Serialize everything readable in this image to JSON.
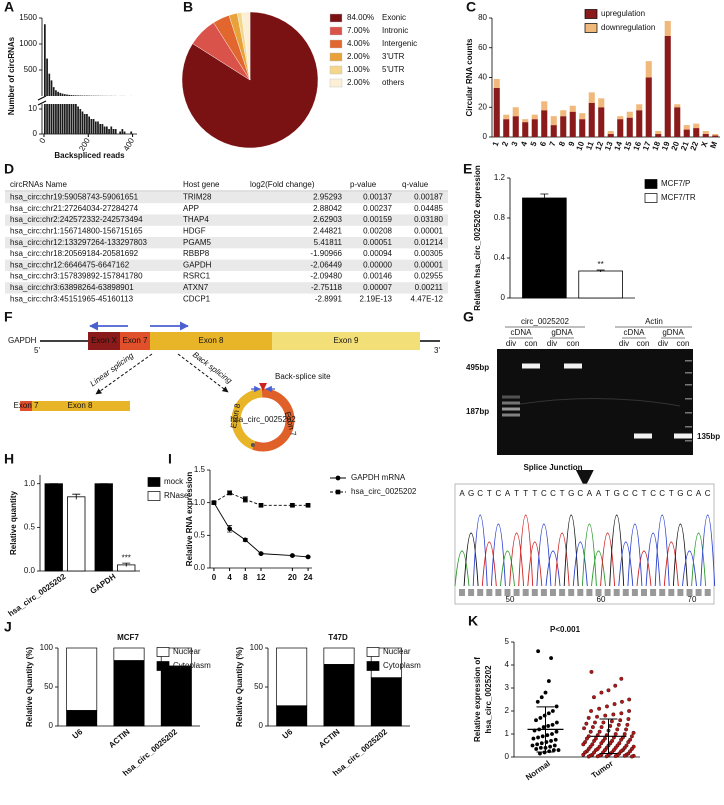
{
  "panels": [
    "A",
    "B",
    "C",
    "D",
    "E",
    "F",
    "G",
    "H",
    "I",
    "J",
    "K"
  ],
  "chart_data": [
    {
      "type": "histogram_broken",
      "y_label": "Number of circRNAs",
      "x_label": "Backspliced reads",
      "bins": [
        0,
        10,
        20,
        30,
        40,
        50,
        60,
        70,
        80,
        90,
        100,
        110,
        120,
        130,
        140,
        150,
        160,
        170,
        180,
        190,
        200,
        210,
        220,
        230,
        240,
        250,
        260,
        270,
        280,
        290,
        300,
        310,
        320,
        330,
        340,
        350,
        360,
        370,
        380,
        390,
        400
      ],
      "values": [
        1380,
        720,
        430,
        300,
        170,
        110,
        80,
        60,
        45,
        35,
        28,
        22,
        18,
        15,
        12,
        11,
        10,
        9,
        8,
        8,
        7,
        6,
        6,
        5,
        5,
        4,
        4,
        3,
        3,
        2,
        3,
        2,
        2,
        0,
        1,
        2,
        1,
        0,
        0,
        1
      ],
      "color": "#1a1a1a",
      "xlim": [
        0,
        420
      ],
      "xticks": [
        0,
        200,
        400
      ],
      "ylim": [
        0,
        1500
      ],
      "yticks": [
        500,
        1000,
        1500
      ],
      "ylim_lower": [
        0,
        12
      ],
      "yticks_lower": [
        0,
        10
      ]
    },
    {
      "type": "pie",
      "labels": [
        "Exonic",
        "Intronic",
        "Intergenic",
        "3'UTR",
        "5'UTR",
        "others"
      ],
      "values": [
        84,
        7,
        4,
        2,
        1,
        2
      ],
      "value_labels": [
        "84.00%",
        "7.00%",
        "4.00%",
        "2.00%",
        "1.00%",
        "2.00%"
      ],
      "colors": [
        "#7a1214",
        "#d9534a",
        "#e2672e",
        "#e8a23a",
        "#f3d58c",
        "#fbf0d6"
      ]
    },
    {
      "type": "stacked_bar",
      "y_label": "Circular RNA counts",
      "categories": [
        "1",
        "2",
        "3",
        "4",
        "5",
        "6",
        "7",
        "8",
        "9",
        "10",
        "11",
        "12",
        "13",
        "14",
        "15",
        "16",
        "17",
        "18",
        "19",
        "20",
        "21",
        "22",
        "X",
        "M"
      ],
      "series": [
        {
          "name": "upregulation",
          "color": "#8b1a1a",
          "values": [
            33,
            12,
            14,
            10,
            12,
            18,
            8,
            14,
            17,
            12,
            23,
            20,
            2,
            12,
            13,
            18,
            40,
            2,
            68,
            20,
            5,
            6,
            2,
            1
          ]
        },
        {
          "name": "downregulation",
          "color": "#f0b87a",
          "values": [
            6,
            3,
            6,
            2,
            3,
            6,
            6,
            4,
            4,
            4,
            7,
            6,
            2,
            2,
            4,
            4,
            11,
            2,
            10,
            2,
            3,
            3,
            2,
            1
          ]
        }
      ],
      "ylim": [
        0,
        80
      ],
      "yticks": [
        0,
        20,
        40,
        60,
        80
      ]
    },
    {
      "type": "grouped_bar",
      "y_label": "Relative hsa_circ_0025202 expression",
      "categories": [
        null
      ],
      "series": [
        {
          "name": "MCF7/P",
          "color": "#000000",
          "values": [
            1.0
          ],
          "errors": [
            0.04
          ]
        },
        {
          "name": "MCF7/TR",
          "color": "#ffffff",
          "values": [
            0.27
          ],
          "errors": [
            0.01
          ]
        }
      ],
      "edgecolor": "#000000",
      "annotation": "**",
      "ylim": [
        0,
        1.2
      ],
      "yticks": [
        0,
        0.4,
        0.8,
        1.2
      ]
    },
    {
      "type": "grouped_bar",
      "y_label": "Relative quantity",
      "categories": [
        "hsa_circ_0025202",
        "GAPDH"
      ],
      "series": [
        {
          "name": "mock",
          "color": "#000000",
          "values": [
            1.0,
            1.0
          ],
          "errors": [
            0.0,
            0.0
          ]
        },
        {
          "name": "RNase",
          "color": "#ffffff",
          "values": [
            0.85,
            0.07
          ],
          "errors": [
            0.03,
            0.02
          ]
        }
      ],
      "edgecolor": "#000000",
      "annotation": "***",
      "ylim": [
        0,
        1.1
      ],
      "yticks": [
        {
          "value": 0,
          "label": "0.0"
        },
        0.5,
        {
          "value": 1,
          "label": "1.0"
        }
      ]
    },
    {
      "type": "line",
      "y_label": "Relative RNA expression",
      "x": [
        0,
        4,
        8,
        12,
        20,
        24
      ],
      "series": [
        {
          "name": "GAPDH mRNA",
          "color": "#000000",
          "marker": "circle",
          "dashed": false,
          "values": [
            1.0,
            0.6,
            0.43,
            0.22,
            0.19,
            0.17
          ],
          "errors": [
            0.02,
            0.05,
            0.02,
            0.01,
            0.01,
            0.01
          ]
        },
        {
          "name": "hsa_circ_0025202",
          "color": "#000000",
          "marker": "square",
          "dashed": true,
          "values": [
            1.0,
            1.15,
            1.05,
            0.96,
            0.96,
            0.96
          ],
          "errors": [
            0.02,
            0.03,
            0.04,
            0.02,
            0.02,
            0.02
          ]
        }
      ],
      "xlim": [
        -1,
        25
      ],
      "xticks": [
        0,
        4,
        8,
        12,
        20,
        24
      ],
      "ylim": [
        0,
        1.5
      ],
      "yticks": [
        {
          "value": 0,
          "label": "0.0"
        },
        0.5,
        {
          "value": 1,
          "label": "1.0"
        },
        1.5
      ]
    },
    {
      "type": "stacked_bar",
      "title": "MCF7",
      "y_label": "Relative Quantity (%)",
      "categories": [
        "U6",
        "ACTIN",
        "hsa_circ_0025202"
      ],
      "series": [
        {
          "name": "Cytoplasm",
          "color": "#000000",
          "values": [
            20,
            84,
            77
          ]
        },
        {
          "name": "Nuclear",
          "color": "#ffffff",
          "values": [
            80,
            16,
            23
          ]
        }
      ],
      "edgecolor": "#000000",
      "legend_reverse": true,
      "ylim": [
        0,
        100
      ],
      "yticks": [
        0,
        50,
        100
      ]
    },
    {
      "type": "stacked_bar",
      "title": "T47D",
      "y_label": "Relative Quantity (%)",
      "categories": [
        "U6",
        "ACTIN",
        "hsa_circ_0025202"
      ],
      "series": [
        {
          "name": "Cytoplasm",
          "color": "#000000",
          "values": [
            26,
            79,
            62
          ]
        },
        {
          "name": "Nuclear",
          "color": "#ffffff",
          "values": [
            74,
            21,
            38
          ]
        }
      ],
      "edgecolor": "#000000",
      "legend_reverse": true,
      "ylim": [
        0,
        100
      ],
      "yticks": [
        0,
        50,
        100
      ]
    },
    {
      "type": "dot_plot",
      "title": "P<0.001",
      "y_label": [
        "Relative expression of",
        "hsa_circ_0025202"
      ],
      "categories": [
        "Normal",
        "Tumor"
      ],
      "colors": [
        "#000000",
        "#b01818"
      ],
      "values": [
        [
          4.6,
          4.3,
          3.3,
          2.8,
          2.6,
          2.4,
          2.2,
          2.0,
          1.9,
          1.8,
          1.7,
          1.6,
          1.5,
          1.4,
          1.35,
          1.3,
          1.2,
          1.15,
          1.1,
          1.0,
          0.95,
          0.9,
          0.85,
          0.8,
          0.75,
          0.7,
          0.65,
          0.6,
          0.55,
          0.5,
          0.5,
          0.45,
          0.4,
          0.4,
          0.35,
          0.3,
          0.3,
          0.25,
          0.2,
          0.15
        ],
        [
          3.7,
          3.4,
          3.1,
          2.9,
          2.8,
          2.6,
          2.5,
          2.4,
          2.3,
          2.2,
          2.1,
          2.0,
          2.0,
          1.9,
          1.85,
          1.8,
          1.75,
          1.7,
          1.65,
          1.6,
          1.55,
          1.5,
          1.5,
          1.45,
          1.4,
          1.4,
          1.35,
          1.3,
          1.3,
          1.25,
          1.2,
          1.2,
          1.15,
          1.1,
          1.1,
          1.05,
          1.0,
          1.0,
          0.95,
          0.95,
          0.9,
          0.9,
          0.85,
          0.85,
          0.8,
          0.8,
          0.8,
          0.75,
          0.75,
          0.7,
          0.7,
          0.7,
          0.65,
          0.65,
          0.6,
          0.6,
          0.6,
          0.55,
          0.55,
          0.5,
          0.5,
          0.5,
          0.45,
          0.45,
          0.45,
          0.4,
          0.4,
          0.4,
          0.35,
          0.35,
          0.35,
          0.3,
          0.3,
          0.3,
          0.3,
          0.25,
          0.25,
          0.25,
          0.2,
          0.2,
          0.2,
          0.2,
          0.15,
          0.15,
          0.15,
          0.1,
          0.1,
          0.1,
          0.1,
          0.08,
          0.08,
          0.06,
          0.06,
          0.05,
          0.05,
          0.04,
          0.03,
          0.03,
          0.02,
          0.02
        ]
      ],
      "means": [
        1.2,
        0.9
      ],
      "sds": [
        0.98,
        0.75
      ],
      "ylim": [
        0,
        5
      ],
      "yticks": [
        0,
        1,
        2,
        3,
        4,
        5
      ]
    }
  ],
  "table": {
    "columns": [
      "circRNAs Name",
      "Host gene",
      "log2(Fold change)",
      "p-value",
      "q-value"
    ],
    "rows": [
      [
        "hsa_circ:chr19:59058743-59061651",
        "TRIM28",
        "2.95293",
        "0.00137",
        "0.00187"
      ],
      [
        "hsa_circ:chr21:27264034-27284274",
        "APP",
        "2.88042",
        "0.00237",
        "0.04485"
      ],
      [
        "hsa_circ:chr2:242572332-242573494",
        "THAP4",
        "2.62903",
        "0.00159",
        "0.03180"
      ],
      [
        "hsa_circ:chr1:156714800-156715165",
        "HDGF",
        "2.44821",
        "0.00208",
        "0.00001"
      ],
      [
        "hsa_circ:chr12:133297264-133297803",
        "PGAM5",
        "5.41811",
        "0.00051",
        "0.01214"
      ],
      [
        "hsa_circ:chr18:20569184-20581692",
        "RBBP8",
        "-1.90966",
        "0.00094",
        "0.00305"
      ],
      [
        "hsa_circ:chr12:6646475-6647162",
        "GAPDH",
        "-2.06449",
        "0.00000",
        "0.00001"
      ],
      [
        "hsa_circ:chr3:157839892-157841780",
        "RSRC1",
        "-2.09480",
        "0.00146",
        "0.02955"
      ],
      [
        "hsa_circ:chr3:63898264-63898901",
        "ATXN7",
        "-2.75118",
        "0.00007",
        "0.00211"
      ],
      [
        "hsa_circ:chr3:45151965-45160113",
        "CDCP1",
        "-2.8991",
        "2.19E-13",
        "4.47E-12"
      ]
    ]
  },
  "gene_diagram": {
    "gene": "GAPDH",
    "five_prime": "5'",
    "three_prime": "3'",
    "exons": [
      "Exon X",
      "Exon 7",
      "Exon 8",
      "Exon 9"
    ],
    "linear_splicing": "Linear splicing",
    "back_splicing": "Back splicing",
    "back_splice_site": "Back-splice site",
    "linear_product": [
      "Exon 7",
      "Exon 8"
    ],
    "circ_name": "hsa_circ_0025202",
    "circ_exons": [
      "Exon 8",
      "Exon 7"
    ]
  },
  "gel": {
    "groups": [
      "circ_0025202",
      "Actin"
    ],
    "templates": [
      "cDNA",
      "gDNA",
      "cDNA",
      "gDNA"
    ],
    "lanes": [
      "div",
      "con",
      "div",
      "con",
      "div",
      "con",
      "div",
      "con"
    ],
    "markers_left": [
      "495bp",
      "187bp"
    ],
    "marker_right": "135bp",
    "junction_label": "Splice Junction",
    "sequence": [
      "A",
      "G",
      "C",
      "T",
      "C",
      "A",
      "T",
      "T",
      "T",
      "C",
      "C",
      "T",
      "G",
      "C",
      "A",
      "A",
      "T",
      "G",
      "C",
      "C",
      "T",
      "C",
      "C",
      "T",
      "G",
      "C",
      "A",
      "C"
    ],
    "positions": [
      "50",
      "60",
      "70"
    ]
  }
}
